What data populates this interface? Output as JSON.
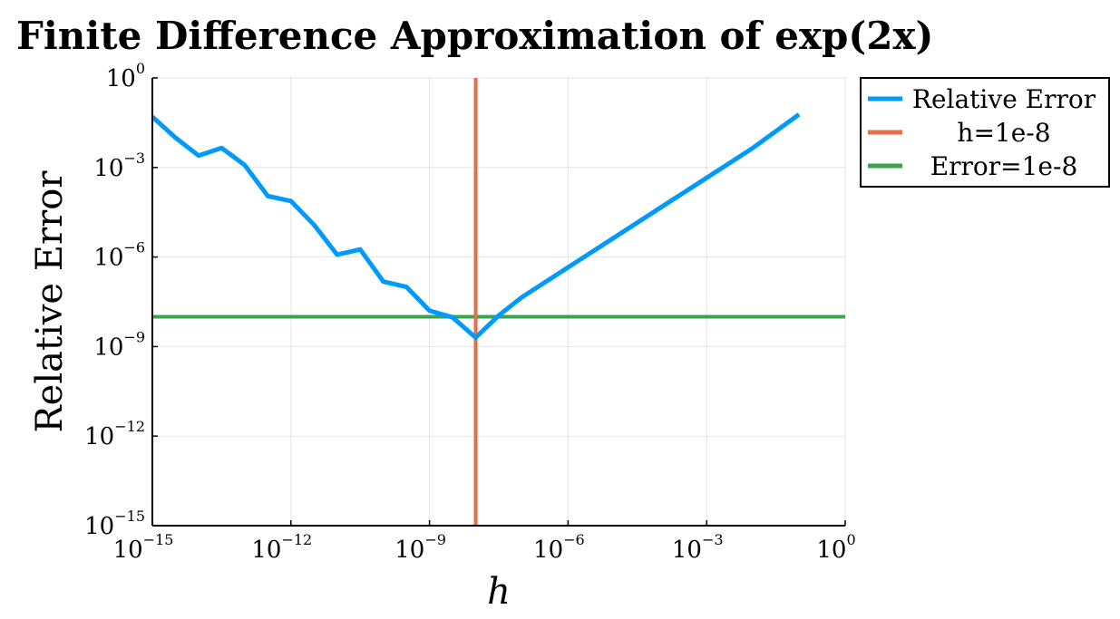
{
  "chart_data": {
    "type": "line",
    "title": "Finite Difference Approximation of exp(2x)",
    "xlabel": "h",
    "ylabel": "Relative Error",
    "xscale": "log",
    "yscale": "log",
    "xlim": [
      1e-15,
      1
    ],
    "ylim": [
      1e-15,
      1
    ],
    "xticks": [
      {
        "base": "10",
        "exp": "−15"
      },
      {
        "base": "10",
        "exp": "−12"
      },
      {
        "base": "10",
        "exp": "−9"
      },
      {
        "base": "10",
        "exp": "−6"
      },
      {
        "base": "10",
        "exp": "−3"
      },
      {
        "base": "10",
        "exp": "0"
      }
    ],
    "yticks": [
      {
        "base": "10",
        "exp": "−15"
      },
      {
        "base": "10",
        "exp": "−12"
      },
      {
        "base": "10",
        "exp": "−9"
      },
      {
        "base": "10",
        "exp": "−6"
      },
      {
        "base": "10",
        "exp": "−3"
      },
      {
        "base": "10",
        "exp": "0"
      }
    ],
    "grid": true,
    "legend_position": "outside-top-right",
    "series": [
      {
        "name": "Relative Error",
        "color": "#009AFA",
        "x": [
          1e-15,
          3.16e-15,
          1e-14,
          3.16e-14,
          1e-13,
          3.16e-13,
          1e-12,
          3.16e-12,
          1e-11,
          3.16e-11,
          1e-10,
          3.16e-10,
          1e-09,
          3.16e-09,
          1e-08,
          3.16e-08,
          1e-07,
          1e-06,
          1e-05,
          0.0001,
          0.001,
          0.01,
          0.1
        ],
        "y": [
          0.05,
          0.01,
          0.0025,
          0.0045,
          0.0012,
          0.00011,
          7.5e-05,
          1.2e-05,
          1.2e-06,
          1.8e-06,
          1.5e-07,
          1e-07,
          1.6e-08,
          9.5e-09,
          2e-09,
          1.1e-08,
          4.5e-08,
          4.5e-07,
          4.5e-06,
          4.5e-05,
          0.00045,
          0.0045,
          0.06
        ]
      },
      {
        "name": "h=1e-8",
        "color": "#E26F46",
        "vline": 1e-08
      },
      {
        "name": "Error=1e-8",
        "color": "#3DA44D",
        "hline": 1e-08
      }
    ]
  }
}
